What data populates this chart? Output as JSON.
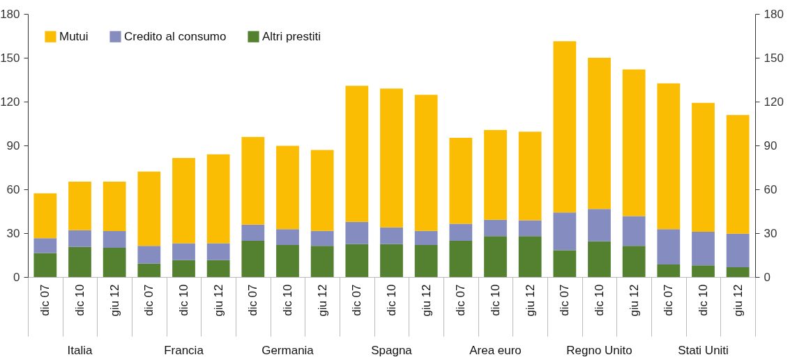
{
  "chart_data": {
    "type": "bar",
    "stacked": true,
    "legend": "top left",
    "grid": false,
    "categories": [
      "dic 07",
      "dic 10",
      "giu 12",
      "dic 07",
      "dic 10",
      "giu 12",
      "dic 07",
      "dic 10",
      "giu 12",
      "dic 07",
      "dic 10",
      "giu 12",
      "dic 07",
      "dic 10",
      "giu 12",
      "dic 07",
      "dic 10",
      "giu 12",
      "dic 07",
      "dic 10",
      "giu 12"
    ],
    "annotations": [
      "Italia",
      "Francia",
      "Germania",
      "Spagna",
      "Area euro",
      "Regno Unito",
      "Stati Uniti"
    ],
    "ylim": [
      0,
      180
    ],
    "yticks": [
      0,
      30,
      60,
      90,
      120,
      150,
      180
    ],
    "y2lim": [
      0,
      180
    ],
    "y2ticks": [
      0,
      30,
      60,
      90,
      120,
      150,
      180
    ],
    "series": [
      {
        "name": "Altri prestiti",
        "color": "#538130",
        "values": [
          16.4,
          20.6,
          20.0,
          9.2,
          11.6,
          11.6,
          24.8,
          21.9,
          21.3,
          22.5,
          22.5,
          21.9,
          24.8,
          28.0,
          28.0,
          18.3,
          24.4,
          21.3,
          8.6,
          8.0,
          6.7
        ]
      },
      {
        "name": "Credito al consumo",
        "color": "#848cc0",
        "values": [
          10.2,
          11.4,
          11.4,
          12.1,
          11.5,
          11.5,
          11.0,
          10.8,
          10.3,
          15.2,
          11.4,
          9.7,
          11.6,
          11.2,
          10.8,
          25.9,
          22.2,
          20.4,
          24.1,
          22.9,
          23.0
        ]
      },
      {
        "name": "Mutui",
        "color": "#fbbc04",
        "values": [
          30.7,
          33.2,
          33.8,
          50.9,
          58.3,
          60.8,
          60.0,
          57.1,
          55.3,
          93.1,
          95.0,
          93.1,
          58.8,
          61.4,
          60.6,
          117.1,
          103.4,
          100.3,
          99.8,
          88.3,
          81.1
        ]
      }
    ]
  }
}
